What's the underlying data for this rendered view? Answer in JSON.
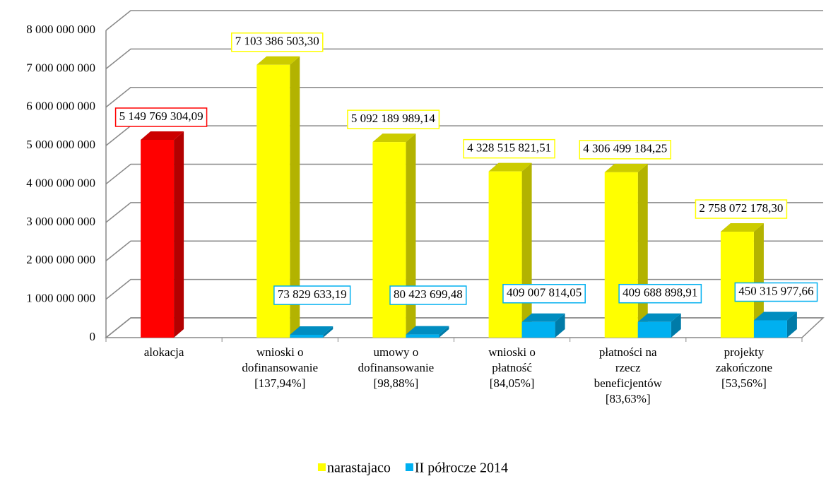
{
  "chart_data": {
    "type": "bar3d",
    "categories": [
      [
        "alokacja"
      ],
      [
        "wnioski o",
        "dofinansowanie",
        "[137,94%]"
      ],
      [
        "umowy o",
        "dofinansowanie",
        "[98,88%]"
      ],
      [
        "wnioski o",
        "płatność",
        "[84,05%]"
      ],
      [
        "płatności na",
        "rzecz",
        "beneficjentów",
        "[83,63%]"
      ],
      [
        "projekty",
        "zakończone",
        "[53,56%]"
      ]
    ],
    "series": [
      {
        "name": "narastajaco",
        "color": "#ffff00",
        "point_colors": [
          "#ff0000",
          null,
          null,
          null,
          null,
          null
        ],
        "values": [
          5149769304.09,
          7103386503.3,
          5092189989.14,
          4328515821.51,
          4306499184.25,
          2758072178.3
        ],
        "value_labels": [
          "5 149 769 304,09",
          "7 103 386 503,30",
          "5 092 189 989,14",
          "4 328 515 821,51",
          "4 306 499 184,25",
          "2 758 072 178,30"
        ]
      },
      {
        "name": "II półrocze 2014",
        "color": "#00b0f0",
        "values": [
          null,
          73829633.19,
          80423699.48,
          409007814.05,
          409688898.91,
          450315977.66
        ],
        "value_labels": [
          null,
          "73 829 633,19",
          "80 423 699,48",
          "409 007 814,05",
          "409 688 898,91",
          "450 315 977,66"
        ]
      }
    ],
    "ylim": [
      0,
      8000000000
    ],
    "yticks": [
      {
        "value": 0,
        "label": "0"
      },
      {
        "value": 1000000000,
        "label": "1 000 000 000"
      },
      {
        "value": 2000000000,
        "label": "2 000 000 000"
      },
      {
        "value": 3000000000,
        "label": "3 000 000 000"
      },
      {
        "value": 4000000000,
        "label": "4 000 000 000"
      },
      {
        "value": 5000000000,
        "label": "5 000 000 000"
      },
      {
        "value": 6000000000,
        "label": "6 000 000 000"
      },
      {
        "value": 7000000000,
        "label": "7 000 000 000"
      },
      {
        "value": 8000000000,
        "label": "8 000 000 000"
      }
    ],
    "grid": true,
    "legend": "bottom"
  }
}
